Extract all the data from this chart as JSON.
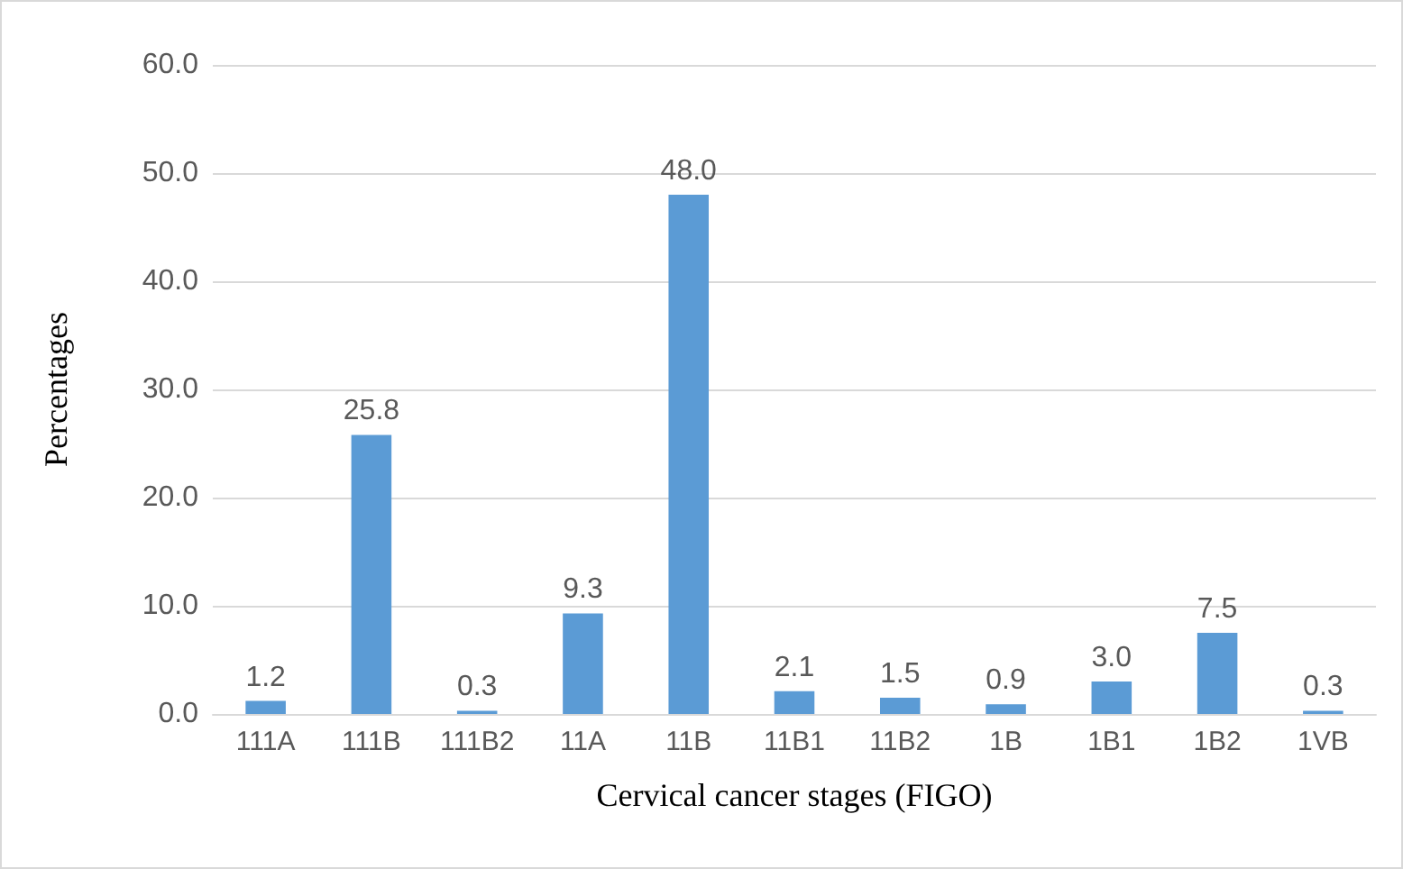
{
  "chart_data": {
    "type": "bar",
    "xlabel": "Cervical cancer stages (FIGO)",
    "ylabel": "Percentages",
    "categories": [
      "111A",
      "111B",
      "111B2",
      "11A",
      "11B",
      "11B1",
      "11B2",
      "1B",
      "1B1",
      "1B2",
      "1VB"
    ],
    "values": [
      1.2,
      25.8,
      0.3,
      9.3,
      48.0,
      2.1,
      1.5,
      0.9,
      3.0,
      7.5,
      0.3
    ],
    "value_labels": [
      "1.2",
      "25.8",
      "0.3",
      "9.3",
      "48.0",
      "2.1",
      "1.5",
      "0.9",
      "3.0",
      "7.5",
      "0.3"
    ],
    "color": "#5b9bd5",
    "ylim": [
      0,
      60
    ],
    "yticks": [
      {
        "value": 0,
        "label": "0.0"
      },
      {
        "value": 10,
        "label": "10.0"
      },
      {
        "value": 20,
        "label": "20.0"
      },
      {
        "value": 30,
        "label": "30.0"
      },
      {
        "value": 40,
        "label": "40.0"
      },
      {
        "value": 50,
        "label": "50.0"
      },
      {
        "value": 60,
        "label": "60.0"
      }
    ],
    "grid": "y"
  }
}
